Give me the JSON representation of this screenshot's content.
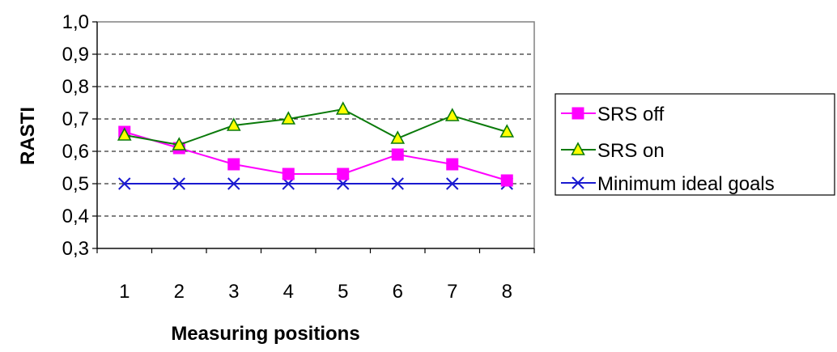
{
  "chart_data": {
    "type": "line",
    "title": "",
    "xlabel": "Measuring positions",
    "ylabel": "RASTI",
    "categories": [
      "1",
      "2",
      "3",
      "4",
      "5",
      "6",
      "7",
      "8"
    ],
    "y_ticks": [
      "0,3",
      "0,4",
      "0,5",
      "0,6",
      "0,7",
      "0,8",
      "0,9",
      "1,0"
    ],
    "ylim": [
      0.3,
      1.0
    ],
    "grid": "horizontal dashed",
    "legend_position": "right",
    "series": [
      {
        "name": "SRS off",
        "values": [
          0.66,
          0.61,
          0.56,
          0.53,
          0.53,
          0.59,
          0.56,
          0.51
        ],
        "color": "#ff00ff",
        "marker": "square"
      },
      {
        "name": "SRS on",
        "values": [
          0.65,
          0.62,
          0.68,
          0.7,
          0.73,
          0.64,
          0.71,
          0.66
        ],
        "color": "#0a7a0a",
        "marker": "triangle"
      },
      {
        "name": "Minimum ideal goals",
        "values": [
          0.5,
          0.5,
          0.5,
          0.5,
          0.5,
          0.5,
          0.5,
          0.5
        ],
        "color": "#1a1ad0",
        "marker": "x"
      }
    ]
  }
}
